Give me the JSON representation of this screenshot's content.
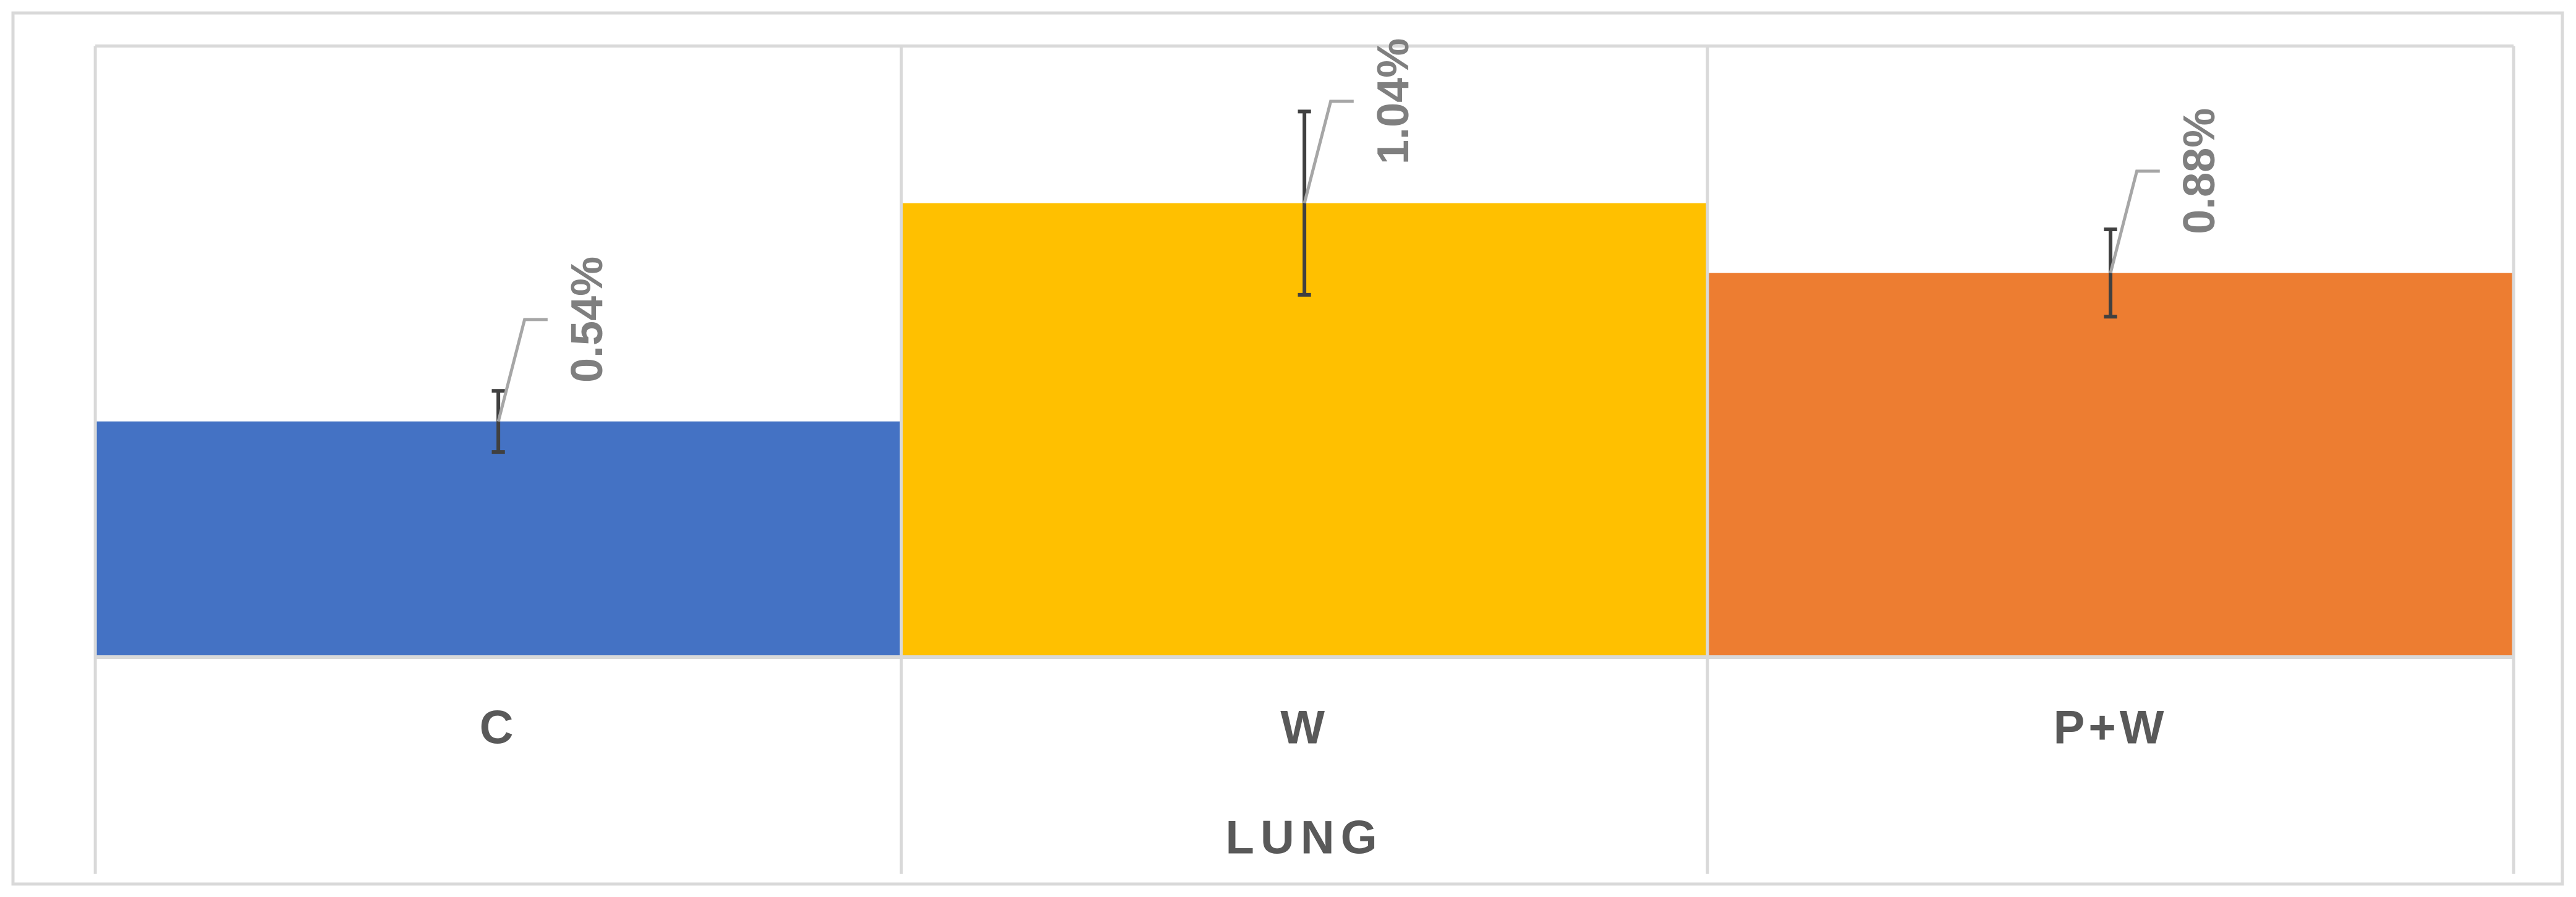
{
  "chart_data": {
    "type": "bar",
    "categories": [
      "C",
      "W",
      "P+W"
    ],
    "values": [
      0.54,
      1.04,
      0.88
    ],
    "value_labels": [
      "0.54%",
      "1.04%",
      "0.88%"
    ],
    "errors": [
      0.07,
      0.21,
      0.1
    ],
    "colors": [
      "#4472c4",
      "#ffc000",
      "#ed7d31"
    ],
    "x_label": "LUNG",
    "ylim": [
      0,
      1.4
    ]
  }
}
